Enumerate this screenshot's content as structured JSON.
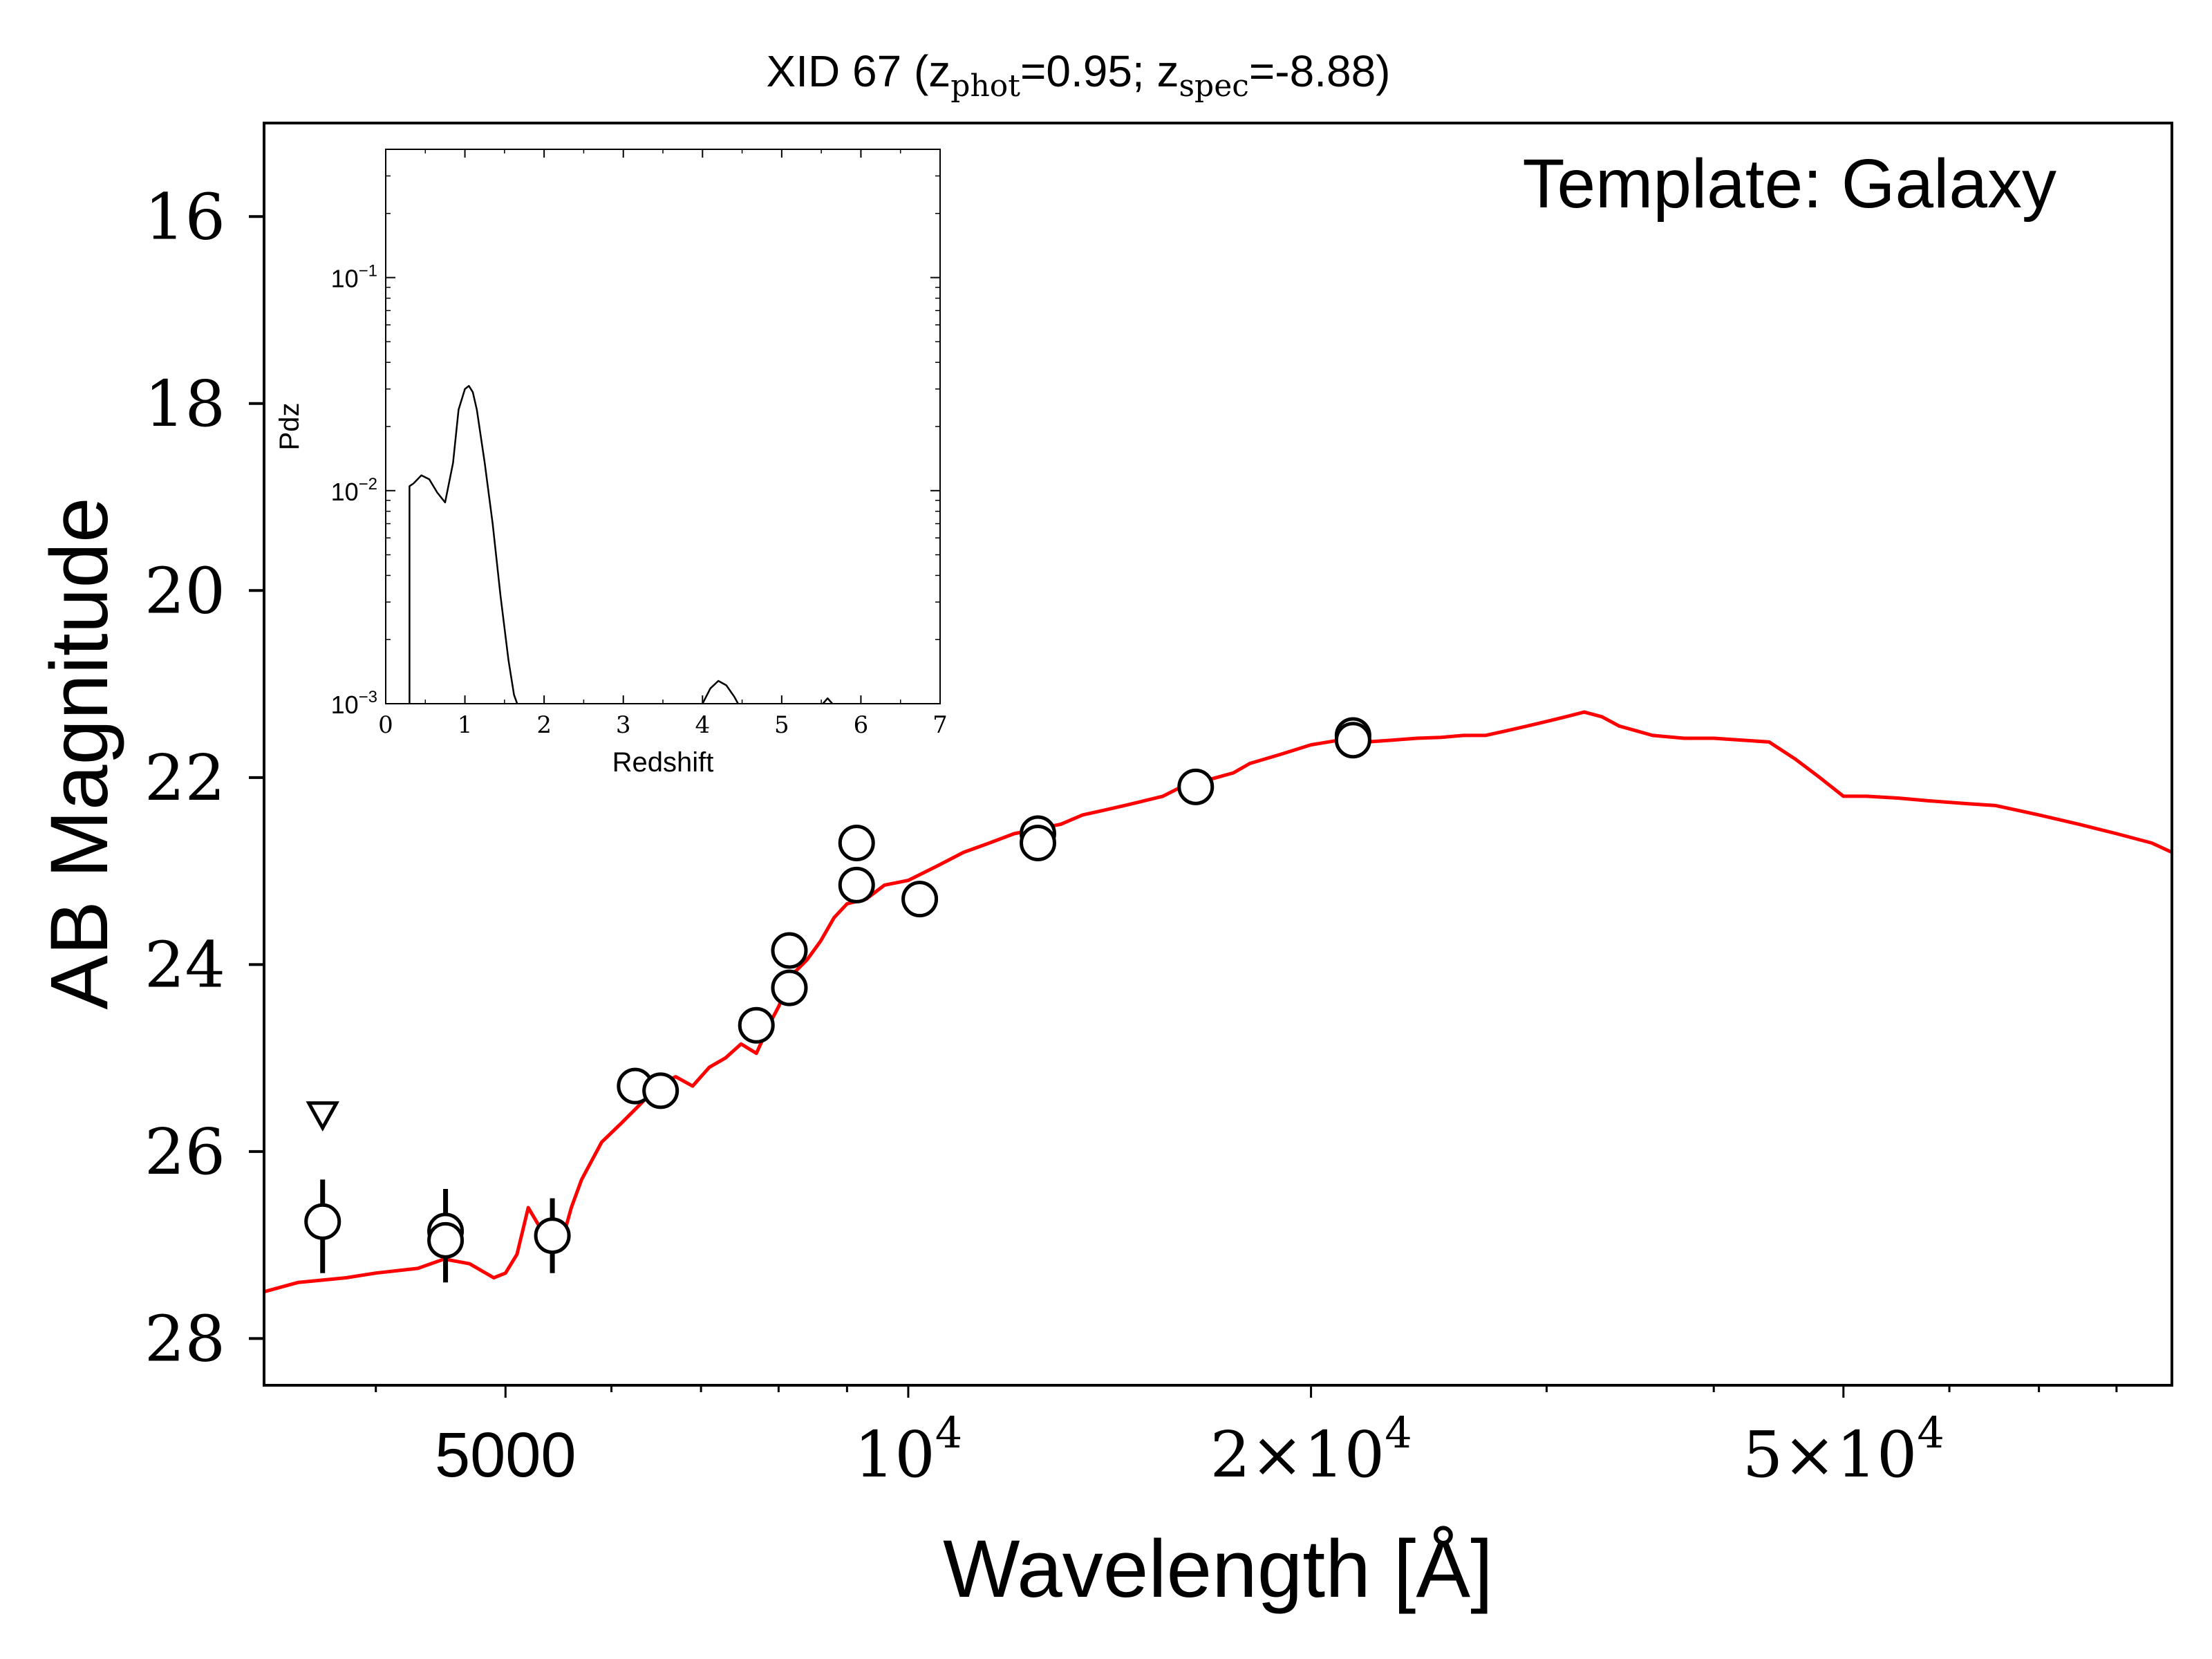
{
  "chart_data": [
    {
      "type": "line",
      "title": "XID 67 (z_phot=0.95; z_spec=-8.88)",
      "title_parts": {
        "prefix": "XID 67 (z",
        "sub1": "phot",
        "mid": "=0.95; z",
        "sub2": "spec",
        "suffix": "=-8.88)"
      },
      "annotation": "Template: Galaxy",
      "xlabel": "Wavelength [Å]",
      "ylabel": "AB Magnitude",
      "x_scale": "log",
      "xlim": [
        3300,
        88000
      ],
      "ylim": [
        28.5,
        15.0
      ],
      "y_inverted": true,
      "x_ticks": [
        {
          "value": 5000,
          "label": "5000"
        },
        {
          "value": 10000,
          "label": "10^4",
          "base": "10",
          "exp": "4"
        },
        {
          "value": 20000,
          "label": "2×10^4",
          "base": "2×10",
          "exp": "4"
        },
        {
          "value": 50000,
          "label": "5×10^4",
          "base": "5×10",
          "exp": "4"
        }
      ],
      "y_ticks": [
        16,
        18,
        20,
        22,
        24,
        26,
        28
      ],
      "grid": false,
      "colors": {
        "template": "#ff0000",
        "points": "#000000"
      },
      "series": [
        {
          "role": "template",
          "x": [
            3300,
            3500,
            3800,
            4000,
            4300,
            4500,
            4700,
            4900,
            5000,
            5100,
            5200,
            5350,
            5500,
            5600,
            5700,
            5900,
            6100,
            6300,
            6500,
            6700,
            6900,
            7100,
            7300,
            7500,
            7700,
            7900,
            8000,
            8200,
            8400,
            8600,
            8800,
            9000,
            9300,
            9600,
            10000,
            10500,
            11000,
            11500,
            12000,
            12500,
            13000,
            13500,
            14000,
            14500,
            15000,
            15500,
            16000,
            16500,
            17000,
            17500,
            18000,
            19000,
            20000,
            21000,
            22000,
            23000,
            24000,
            25000,
            26000,
            27000,
            28000,
            29000,
            30000,
            31000,
            32000,
            33000,
            34000,
            35000,
            36000,
            38000,
            40000,
            42000,
            44000,
            46000,
            48000,
            50000,
            52000,
            55000,
            58000,
            62000,
            65000,
            70000,
            75000,
            80000,
            85000,
            88000
          ],
          "y": [
            27.5,
            27.4,
            27.35,
            27.3,
            27.25,
            27.15,
            27.2,
            27.35,
            27.3,
            27.1,
            26.6,
            26.9,
            27.0,
            26.6,
            26.3,
            25.9,
            25.7,
            25.5,
            25.3,
            25.2,
            25.3,
            25.1,
            25.0,
            24.85,
            24.95,
            24.6,
            24.45,
            24.1,
            23.95,
            23.75,
            23.5,
            23.35,
            23.3,
            23.15,
            23.1,
            22.95,
            22.8,
            22.7,
            22.6,
            22.55,
            22.5,
            22.4,
            22.35,
            22.3,
            22.25,
            22.2,
            22.1,
            22.05,
            22.0,
            21.95,
            21.85,
            21.75,
            21.65,
            21.6,
            21.62,
            21.6,
            21.58,
            21.57,
            21.55,
            21.55,
            21.5,
            21.45,
            21.4,
            21.35,
            21.3,
            21.35,
            21.45,
            21.5,
            21.55,
            21.58,
            21.58,
            21.6,
            21.62,
            21.8,
            22.0,
            22.2,
            22.2,
            22.22,
            22.25,
            22.28,
            22.3,
            22.4,
            22.5,
            22.6,
            22.7,
            22.8
          ]
        },
        {
          "role": "photometry",
          "points": [
            {
              "x": 3650,
              "y": 26.75,
              "err": [
                26.3,
                27.3
              ]
            },
            {
              "x": 4510,
              "y": 26.85,
              "err": [
                26.4,
                27.4
              ]
            },
            {
              "x": 4510,
              "y": 26.95
            },
            {
              "x": 5420,
              "y": 26.9,
              "err": [
                26.5,
                27.3
              ]
            },
            {
              "x": 6250,
              "y": 25.3
            },
            {
              "x": 6530,
              "y": 25.35
            },
            {
              "x": 7700,
              "y": 24.65
            },
            {
              "x": 8150,
              "y": 23.85
            },
            {
              "x": 8150,
              "y": 24.25
            },
            {
              "x": 9150,
              "y": 22.7
            },
            {
              "x": 9150,
              "y": 23.15
            },
            {
              "x": 10200,
              "y": 23.3
            },
            {
              "x": 12500,
              "y": 22.6
            },
            {
              "x": 12500,
              "y": 22.7
            },
            {
              "x": 16400,
              "y": 22.1
            },
            {
              "x": 21500,
              "y": 21.55
            },
            {
              "x": 21500,
              "y": 21.6
            }
          ],
          "upper_limits": [
            {
              "x": 3650,
              "y": 25.6
            }
          ]
        }
      ]
    },
    {
      "type": "line",
      "role": "inset",
      "xlabel": "Redshift",
      "ylabel": "Pdz",
      "y_scale": "log",
      "xlim": [
        0,
        7
      ],
      "ylim": [
        0.001,
        0.4
      ],
      "x_ticks": [
        "0",
        "1",
        "2",
        "3",
        "4",
        "5",
        "6",
        "7"
      ],
      "y_ticks": [
        {
          "value": 0.1,
          "base": "10",
          "exp": "−1"
        },
        {
          "value": 0.01,
          "base": "10",
          "exp": "−2"
        },
        {
          "value": 0.001,
          "base": "10",
          "exp": "−3"
        }
      ],
      "series": [
        {
          "x": [
            0.3,
            0.3,
            0.35,
            0.45,
            0.55,
            0.65,
            0.75,
            0.85,
            0.92,
            1.0,
            1.05,
            1.1,
            1.15,
            1.25,
            1.35,
            1.45,
            1.55,
            1.62,
            1.66
          ],
          "y": [
            0.001,
            0.0105,
            0.0108,
            0.0118,
            0.0113,
            0.0098,
            0.0088,
            0.0135,
            0.024,
            0.03,
            0.031,
            0.029,
            0.024,
            0.0135,
            0.007,
            0.0032,
            0.0016,
            0.0011,
            0.001
          ]
        },
        {
          "x": [
            4.0,
            4.1,
            4.2,
            4.3,
            4.4,
            4.45
          ],
          "y": [
            0.001,
            0.00118,
            0.00128,
            0.00122,
            0.00108,
            0.001
          ]
        },
        {
          "x": [
            5.52,
            5.58,
            5.64
          ],
          "y": [
            0.001,
            0.00106,
            0.001
          ]
        }
      ]
    }
  ]
}
